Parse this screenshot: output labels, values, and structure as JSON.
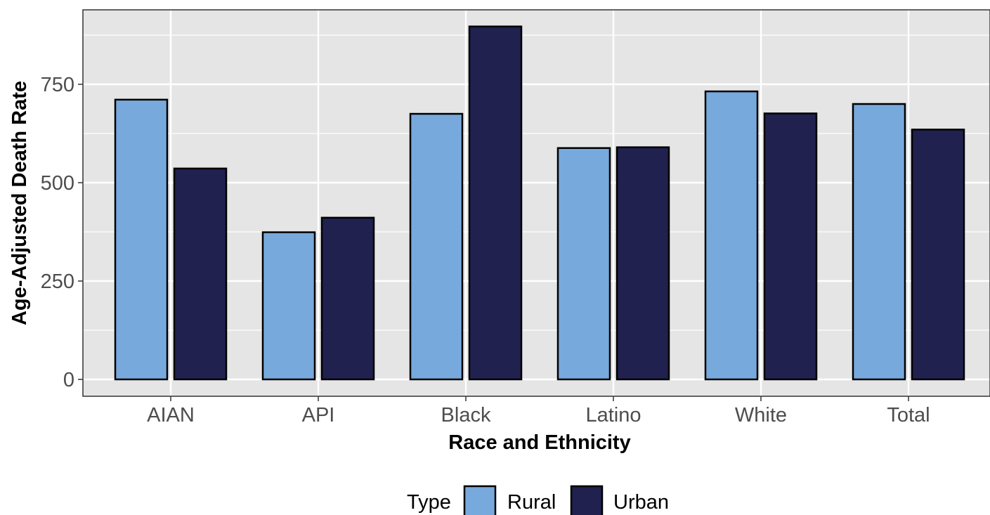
{
  "chart_data": {
    "type": "bar",
    "title": "",
    "xlabel": "Race and Ethnicity",
    "ylabel": "Age-Adjusted Death Rate",
    "categories": [
      "AIAN",
      "API",
      "Black",
      "Latino",
      "White",
      "Total"
    ],
    "series": [
      {
        "name": "Rural",
        "color": "#77a9dc",
        "values": [
          711,
          374,
          675,
          588,
          732,
          700
        ]
      },
      {
        "name": "Urban",
        "color": "#21214f",
        "values": [
          536,
          411,
          897,
          590,
          676,
          635
        ]
      }
    ],
    "ylim": [
      0,
      945
    ],
    "yticks": [
      0,
      250,
      500,
      750
    ],
    "ytick_labels": [
      "0",
      "250",
      "500",
      "750"
    ],
    "grid": true,
    "legend": {
      "title": "Type",
      "position": "bottom"
    },
    "colors": {
      "panel_background": "#e5e5e5",
      "grid": "#ffffff",
      "bar_outline": "#000000"
    }
  }
}
